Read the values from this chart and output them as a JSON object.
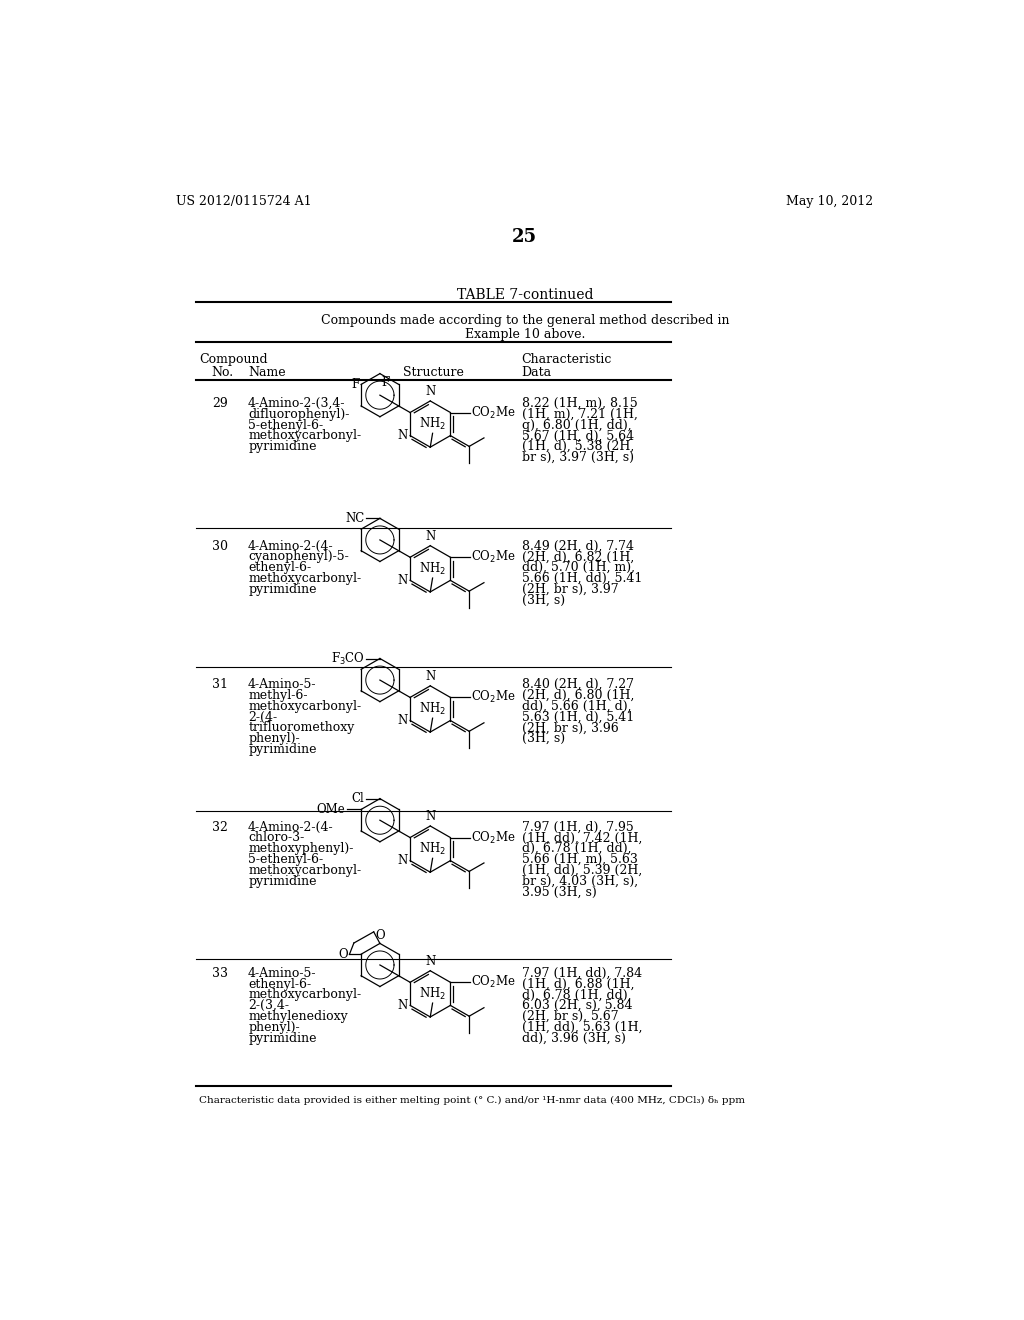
{
  "page_header_left": "US 2012/0115724 A1",
  "page_header_right": "May 10, 2012",
  "page_number": "25",
  "table_title": "TABLE 7-continued",
  "table_subtitle1": "Compounds made according to the general method described in",
  "table_subtitle2": "Example 10 above.",
  "footer": "Characteristic data provided is either melting point (° C.) and/or ¹H-nmr data (400 MHz, CDCl₃) δₕ ppm",
  "bg_color": "#ffffff",
  "compounds": [
    {
      "no": "29",
      "name_lines": [
        "4-Amino-2-(3,4-",
        "difluorophenyl)-",
        "5-ethenyl-6-",
        "methoxycarbonyl-",
        "pyrimidine"
      ],
      "data_lines": [
        "8.22 (1H, m), 8.15",
        "(1H, m), 7.21 (1H,",
        "q), 6.80 (1H, dd),",
        "5.67 (1H, d), 5.64",
        "(1H, d), 5.38 (2H,",
        "br s), 3.97 (3H, s)"
      ],
      "substituents": {
        "top": "F_bottom",
        "cn": false,
        "ocf3": false,
        "cl_ome": false,
        "mdio": false
      }
    },
    {
      "no": "30",
      "name_lines": [
        "4-Amino-2-(4-",
        "cyanophenyl)-5-",
        "ethenyl-6-",
        "methoxycarbonyl-",
        "pyrimidine"
      ],
      "data_lines": [
        "8.49 (2H, d), 7.74",
        "(2H, d), 6.82 (1H,",
        "dd), 5.70 (1H, m),",
        "5.66 (1H, dd), 5.41",
        "(2H, br s), 3.97",
        "(3H, s)"
      ],
      "substituents": {
        "top": "NC_bottom",
        "cn": true,
        "ocf3": false,
        "cl_ome": false,
        "mdio": false
      }
    },
    {
      "no": "31",
      "name_lines": [
        "4-Amino-5-",
        "methyl-6-",
        "methoxycarbonyl-",
        "2-(4-",
        "trifluoromethoxy",
        "phenyl)-",
        "pyrimidine"
      ],
      "data_lines": [
        "8.40 (2H, d), 7.27",
        "(2H, d), 6.80 (1H,",
        "dd), 5.66 (1H, d),",
        "5.63 (1H, d), 5.41",
        "(2H, br s), 3.96",
        "(3H, s)"
      ],
      "substituents": {
        "top": "F3CO_bottom",
        "cn": false,
        "ocf3": true,
        "cl_ome": false,
        "mdio": false
      }
    },
    {
      "no": "32",
      "name_lines": [
        "4-Amino-2-(4-",
        "chloro-3-",
        "methoxyphenyl)-",
        "5-ethenyl-6-",
        "methoxycarbonyl-",
        "pyrimidine"
      ],
      "data_lines": [
        "7.97 (1H, d), 7.95",
        "(1H, dd), 7.42 (1H,",
        "d), 6.78 (1H, dd),",
        "5.66 (1H, m), 5.63",
        "(1H, dd), 5.39 (2H,",
        "br s), 4.03 (3H, s),",
        "3.95 (3H, s)"
      ],
      "substituents": {
        "top": "Cl_OMe",
        "cn": false,
        "ocf3": false,
        "cl_ome": true,
        "mdio": false
      }
    },
    {
      "no": "33",
      "name_lines": [
        "4-Amino-5-",
        "ethenyl-6-",
        "methoxycarbonyl-",
        "2-(3,4-",
        "methylenedioxy",
        "phenyl)-",
        "pyrimidine"
      ],
      "data_lines": [
        "7.97 (1H, dd), 7.84",
        "(1H, d), 6.88 (1H,",
        "d), 6.78 (1H, dd),",
        "6.03 (2H, s), 5.84",
        "(2H, br s), 5.67",
        "(1H, dd), 5.63 (1H,",
        "dd), 3.96 (3H, s)"
      ],
      "substituents": {
        "top": "methylenedioxy",
        "cn": false,
        "ocf3": false,
        "cl_ome": false,
        "mdio": true
      }
    }
  ]
}
